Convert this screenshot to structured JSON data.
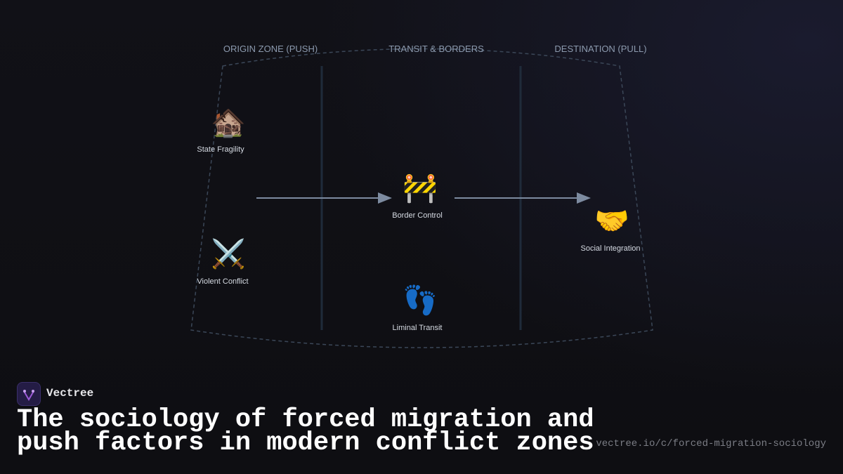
{
  "zones": [
    "ORIGIN ZONE (PUSH)",
    "TRANSIT & BORDERS",
    "DESTINATION (PULL)"
  ],
  "nodes": [
    {
      "icon": "🏚️",
      "label": "State Fragility"
    },
    {
      "icon": "⚔️",
      "label": "Violent Conflict"
    },
    {
      "icon": "🚧",
      "label": "Border Control"
    },
    {
      "icon": "👣",
      "label": "Liminal Transit"
    },
    {
      "icon": "🤝",
      "label": "Social Integration"
    }
  ],
  "brand": "Vectree",
  "title": "The sociology of forced migration and push factors in modern conflict zones",
  "url": "vectree.io/c/forced-migration-sociology"
}
